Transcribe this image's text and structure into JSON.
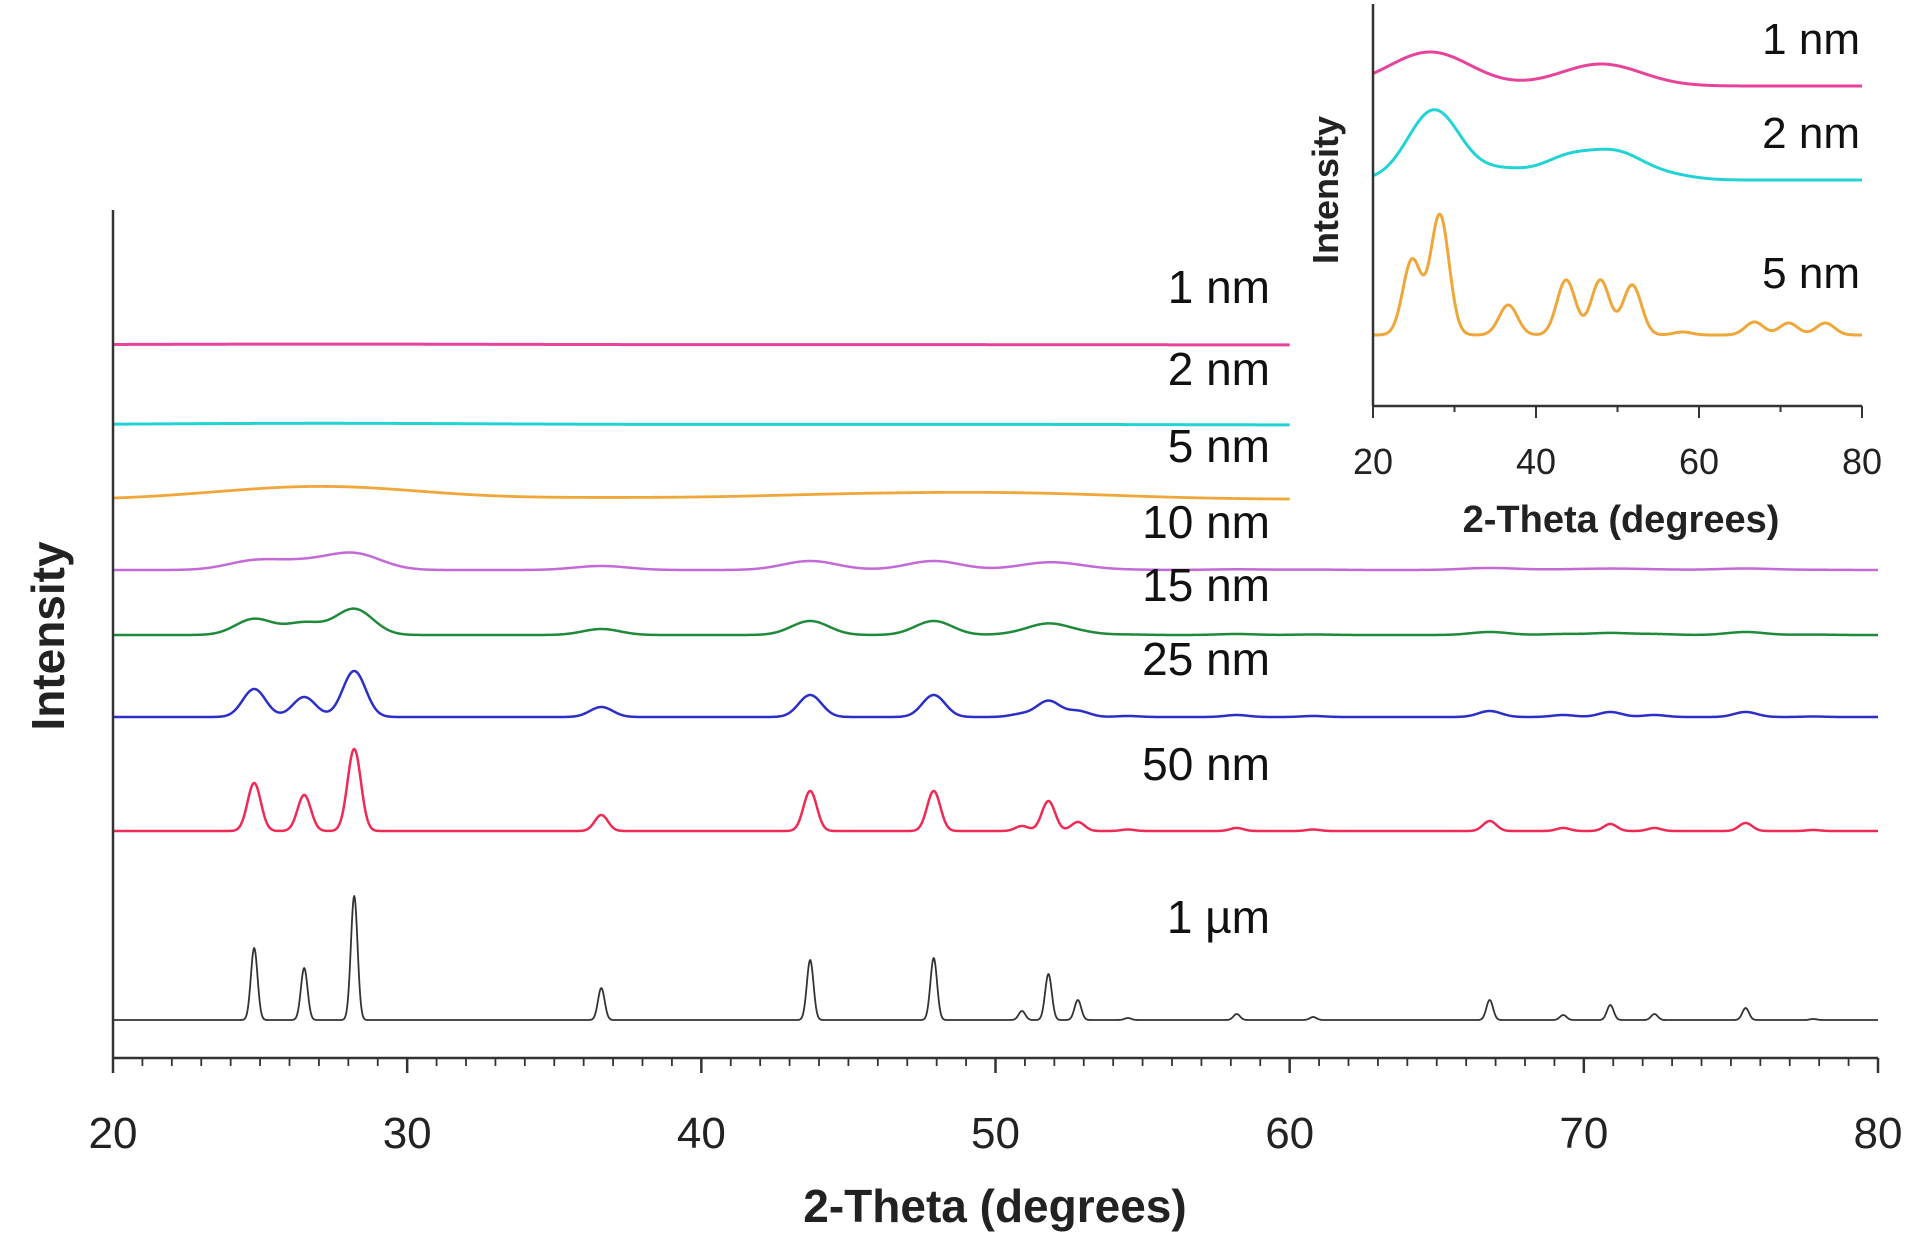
{
  "chart_data": [
    {
      "type": "line",
      "xlabel": "2-Theta (degrees)",
      "ylabel": "Intensity",
      "xlim": [
        20,
        80
      ],
      "xticks": [
        "20",
        "30",
        "40",
        "50",
        "60",
        "70",
        "80"
      ],
      "y_tick_labels": false,
      "grid": false,
      "peak_positions": [
        24.8,
        26.5,
        28.2,
        36.6,
        43.7,
        47.9,
        50.9,
        51.8,
        52.8,
        54.5,
        58.2,
        60.8,
        66.8,
        69.3,
        70.9,
        72.4,
        75.5,
        77.8
      ],
      "series": [
        {
          "name": "1 nm",
          "color": "#e8439a",
          "x_range": [
            20,
            60
          ],
          "relative_peak_heights": [
            0.3,
            0.2,
            0.4,
            0.1,
            0.1,
            0.1,
            0.05,
            0.05,
            0.05,
            0.0,
            0.0,
            0.0,
            0.0,
            0.0,
            0.0,
            0.0,
            0.0,
            0.0
          ]
        },
        {
          "name": "2 nm",
          "color": "#22d3d6",
          "x_range": [
            20,
            60
          ],
          "relative_peak_heights": [
            0.5,
            0.4,
            0.8,
            0.2,
            0.2,
            0.25,
            0.1,
            0.1,
            0.1,
            0.0,
            0.0,
            0.0,
            0.0,
            0.0,
            0.0,
            0.0,
            0.0,
            0.0
          ]
        },
        {
          "name": "5 nm",
          "color": "#f0a73a",
          "x_range": [
            20,
            60
          ],
          "relative_peak_heights": [
            4,
            3,
            8,
            2,
            3.5,
            4,
            0.5,
            3,
            1,
            0.2,
            0.5,
            0.2,
            1,
            0.3,
            0.6,
            0.3,
            0.8,
            0.1
          ]
        },
        {
          "name": "10 nm",
          "color": "#c36ad8",
          "x_range": [
            20,
            80
          ],
          "relative_peak_heights": [
            9,
            7,
            16,
            4,
            9,
            9,
            1,
            6,
            2,
            0.3,
            0.7,
            0.4,
            2,
            0.5,
            1.2,
            0.5,
            1.5,
            0.2
          ]
        },
        {
          "name": "15 nm",
          "color": "#1f8a3a",
          "x_range": [
            20,
            80
          ],
          "relative_peak_heights": [
            16,
            12,
            26,
            6,
            14,
            14,
            2,
            10,
            3,
            0.5,
            1,
            0.5,
            3,
            1,
            2,
            1,
            3,
            0.4
          ]
        },
        {
          "name": "25 nm",
          "color": "#2b2fc7",
          "x_range": [
            20,
            80
          ],
          "relative_peak_heights": [
            28,
            20,
            46,
            10,
            22,
            22,
            3,
            16,
            6,
            1,
            2,
            1,
            6,
            2,
            5,
            2,
            5,
            0.5
          ]
        },
        {
          "name": "50 nm",
          "color": "#ee2a55",
          "x_range": [
            20,
            80
          ],
          "relative_peak_heights": [
            48,
            36,
            82,
            16,
            40,
            40,
            5,
            30,
            9,
            1.5,
            3,
            1.5,
            10,
            3,
            7,
            3,
            8,
            1
          ]
        },
        {
          "name": "1 µm",
          "color": "#333333",
          "x_range": [
            20,
            80
          ],
          "relative_peak_heights": [
            72,
            52,
            124,
            32,
            60,
            62,
            9,
            46,
            20,
            2,
            6,
            3,
            20,
            5,
            15,
            6,
            12,
            1
          ]
        }
      ]
    },
    {
      "type": "line",
      "xlabel": "2-Theta (degrees)",
      "ylabel": "Intensity",
      "xlim": [
        20,
        80
      ],
      "xticks": [
        "20",
        "40",
        "60",
        "80"
      ],
      "y_tick_labels": false,
      "grid": false,
      "series": [
        {
          "name": "1 nm",
          "color": "#e8439a",
          "peaks": [
            {
              "x": 27,
              "height": 0.34
            },
            {
              "x": 48,
              "height": 0.22
            }
          ]
        },
        {
          "name": "2 nm",
          "color": "#22d3d6",
          "peaks": [
            {
              "x": 27.5,
              "height": 0.7
            },
            {
              "x": 36,
              "height": 0.1
            },
            {
              "x": 44,
              "height": 0.22
            },
            {
              "x": 50,
              "height": 0.25
            },
            {
              "x": 56,
              "height": 0.05
            }
          ]
        },
        {
          "name": "5 nm",
          "color": "#f0a73a",
          "peaks": [
            {
              "x": 24.8,
              "height": 0.75
            },
            {
              "x": 28.2,
              "height": 1.2
            },
            {
              "x": 36.6,
              "height": 0.3
            },
            {
              "x": 43.7,
              "height": 0.55
            },
            {
              "x": 47.9,
              "height": 0.55
            },
            {
              "x": 51.8,
              "height": 0.5
            },
            {
              "x": 58,
              "height": 0.03
            },
            {
              "x": 66.8,
              "height": 0.13
            },
            {
              "x": 71,
              "height": 0.12
            },
            {
              "x": 75.5,
              "height": 0.12
            }
          ]
        }
      ]
    }
  ]
}
